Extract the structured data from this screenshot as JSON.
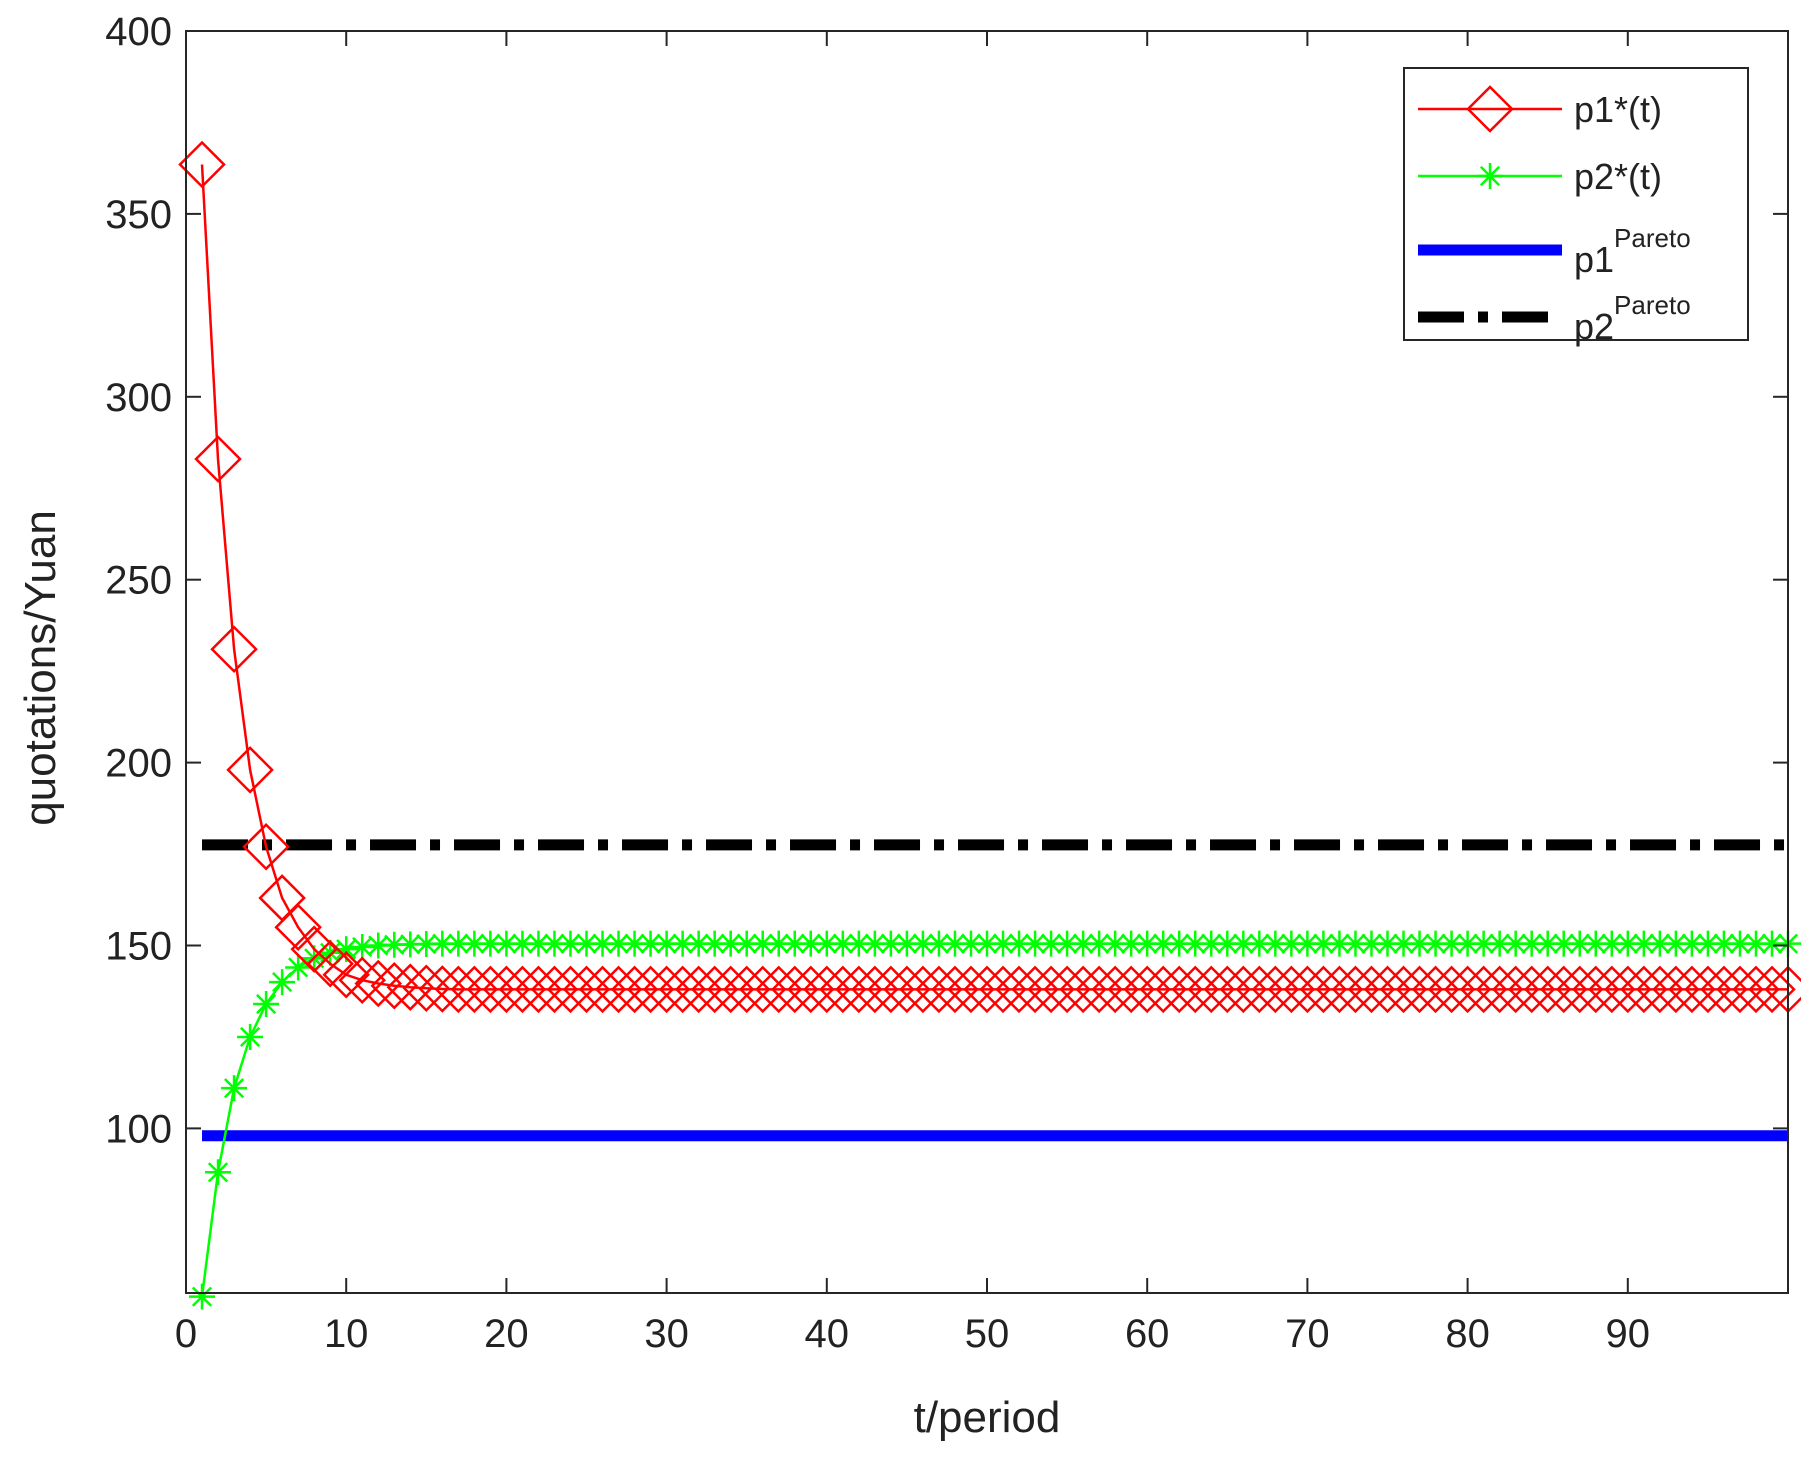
{
  "chart_data": {
    "type": "line",
    "title": "",
    "xlabel": "t/period",
    "ylabel": "quotations/Yuan",
    "xlim": [
      0,
      100
    ],
    "ylim": [
      55,
      400
    ],
    "xticks": [
      0,
      10,
      20,
      30,
      40,
      50,
      60,
      70,
      80,
      90
    ],
    "yticks": [
      100,
      150,
      200,
      250,
      300,
      350,
      400
    ],
    "grid": false,
    "legend_position": "top-right",
    "p1_values": [
      363.5,
      283,
      231,
      198,
      177,
      163,
      155,
      149,
      145,
      142,
      140.5,
      139.6,
      139.0,
      138.6,
      138.3,
      138.1,
      138.0,
      138.0,
      138.0,
      138.0
    ],
    "p1_steady": 138,
    "p2_values": [
      54,
      88,
      111,
      125,
      134,
      140,
      144,
      146.5,
      148,
      149,
      149.6,
      150.0,
      150.2,
      150.3,
      150.4
    ],
    "p2_steady": 150.5,
    "series": [
      {
        "key": "p1",
        "name": "p1*(t)",
        "legend_base": "p1*(t)",
        "legend_sup": "",
        "color": "#ff0000",
        "marker": "diamond",
        "style": "solid"
      },
      {
        "key": "p2",
        "name": "p2*(t)",
        "legend_base": "p2*(t)",
        "legend_sup": "",
        "color": "#00ff00",
        "marker": "asterisk",
        "style": "solid"
      },
      {
        "key": "p1_pareto",
        "name": "p1 Pareto",
        "legend_base": "p1",
        "legend_sup": "Pareto",
        "color": "#0000ff",
        "marker": "none",
        "style": "thick-solid",
        "value": 98
      },
      {
        "key": "p2_pareto",
        "name": "p2 Pareto",
        "legend_base": "p2",
        "legend_sup": "Pareto",
        "color": "#000000",
        "marker": "none",
        "style": "thick-dashdot",
        "value": 177.5
      }
    ],
    "x_start": 1,
    "x_end": 100
  }
}
